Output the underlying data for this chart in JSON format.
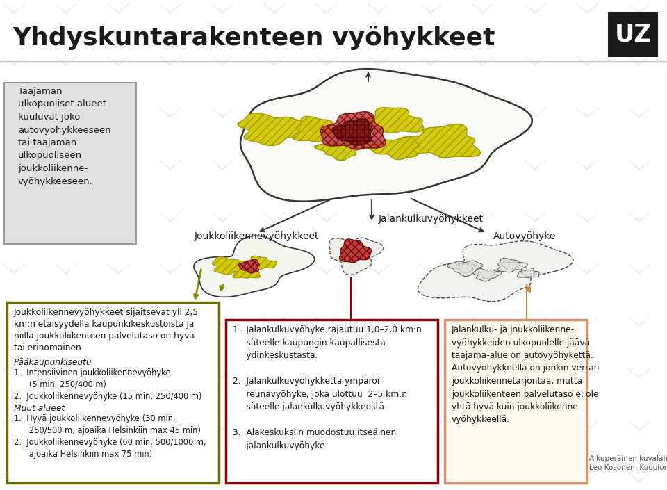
{
  "title": "Yhdyskuntarakenteen vyöhykkeet",
  "bg_color": "#ffffff",
  "title_color": "#1a1a1a",
  "title_fontsize": 26,
  "watermark_text": "UZ",
  "watermark_bg": "#1a1a1a",
  "watermark_color": "#ffffff",
  "divider_color": "#b0b8c0",
  "box1_text": "Taajaman\nulkopuoliset alueet\nkuuluvat joko\nautovyöhykkeeseen\ntai taajaman\nulkopuoliseen\njoukkoliikenne-\nvyöhykkeeseen.",
  "box1_bg": "#e0e0e0",
  "box1_border": "#999999",
  "label_joukko": "Joukkoliikennevyöhykkeet",
  "label_jalankulku": "Jalankulkuvyöhykkeet",
  "label_auto": "Autovyöhyke",
  "box_left_border": "#6b6b00",
  "box_left_bg": "#ffffff",
  "box_mid_border": "#8b0000",
  "box_mid_bg": "#ffffff",
  "box_right_border": "#d4956a",
  "box_right_bg": "#fff8f0",
  "bottom_left_title": "Joukkoliikennevyöhykkeet sijaitsevat yli 2,5\nkm:n etäisyydellä kaupunkikeskustoista ja\nniillä joukkoliikenteen palvelutaso on hyvä\ntai erinomainen.",
  "bottom_left_sub1": "Pääkaupunkiseutu",
  "bottom_left_sub2": "1.  Intensiivinen joukkoliikennevyöhyke\n      (5 min, 250/400 m)\n2.  Joukkoliikennevyöhyke (15 min, 250/400 m)",
  "bottom_left_sub3": "Muut alueet",
  "bottom_left_sub4": "1.  Hyvä joukkoliikennevyöhyke (30 min,\n      250/500 m, ajoaika Helsinkiin max 45 min)\n2.  Joukkoliikennevyöhyke (60 min, 500/1000 m,\n      ajoaika Helsinkiin max 75 min)",
  "bottom_mid_text": "1.  Jalankulkuvyöhyke rajautuu 1,0–2,0 km:n\n     säteelle kaupungin kaupallisesta\n     ydinkeskustasta.\n\n2.  Jalankulkuvyöhykkettä ympäröi\n     reunavyöhyke, joka ulottuu  2–5 km:n\n     säteelle jalankulkuvyöhykkeestä.\n\n3.  Alakeskuksiin muodostuu itseäinen\n     jalankulkuvyöhyke",
  "bottom_right_text": "Jalankulku- ja joukkoliikenne-\nvyöhykkeiden ulkopuolelle jäävä\ntaajama-alue on autovyöhykettä.\nAutovyöhykkeellä on jonkin verran\njoukkoliikennetarjontaa, mutta\njoukkoliikenteen palvelutaso ei ole\nyhtä hyvä kuin joukkoliikenne-\nvyöhykkeellä.",
  "caption": "Alkuperäinen kuvalähde\nLeo Kosonen, Kuopion kaupunki",
  "text_color": "#1a1a1a",
  "body_fontsize": 9.0,
  "label_fontsize": 10.0,
  "yellow_color": "#d4c800",
  "yellow_hatch": "#999900",
  "red_blob_color": "#c04040",
  "outer_blob_color": "#f8f8f4",
  "outer_blob_edge": "#333333"
}
